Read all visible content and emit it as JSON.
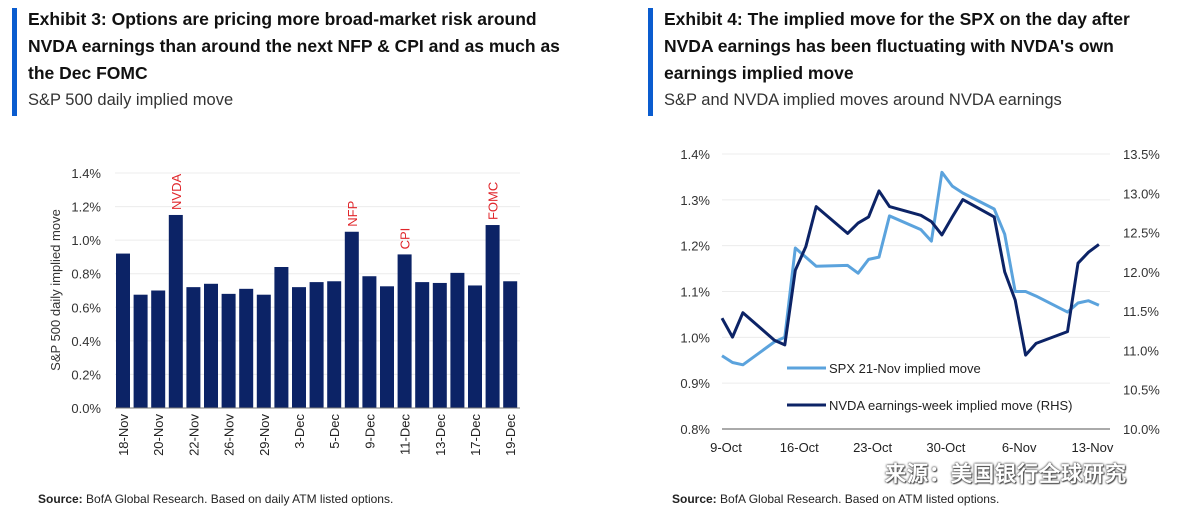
{
  "left": {
    "title": "Exhibit 3: Options are pricing more broad-market risk around NVDA earnings than around the next NFP & CPI and as much as the Dec FOMC",
    "subtitle": "S&P 500 daily implied move",
    "source_label": "Source:",
    "source_text": " BofA Global Research. Based on daily ATM listed options."
  },
  "right": {
    "title": "Exhibit 4: The implied move for the SPX on the day after NVDA earnings has been fluctuating with NVDA's own earnings implied move",
    "subtitle": "S&P and NVDA implied moves around NVDA earnings",
    "source_label": "Source:",
    "source_text": " BofA Global Research. Based on ATM listed options."
  },
  "watermark": "来源：美国银行全球研究",
  "colors": {
    "accent": "#0a5ccf",
    "bar": "#0c2366",
    "event": "#e0262b",
    "spx": "#5ba3dd",
    "nvda": "#0c2366"
  },
  "chart_data": [
    {
      "type": "bar",
      "ylabel": "S&P 500 daily implied move",
      "ylim": [
        0,
        1.4
      ],
      "yticks": [
        "0.0%",
        "0.2%",
        "0.4%",
        "0.6%",
        "0.8%",
        "1.0%",
        "1.2%",
        "1.4%"
      ],
      "grid": true,
      "categories": [
        "18-Nov",
        "19-Nov",
        "20-Nov",
        "21-Nov",
        "22-Nov",
        "25-Nov",
        "26-Nov",
        "27-Nov",
        "29-Nov",
        "2-Dec",
        "3-Dec",
        "4-Dec",
        "5-Dec",
        "6-Dec",
        "9-Dec",
        "10-Dec",
        "11-Dec",
        "12-Dec",
        "13-Dec",
        "16-Dec",
        "17-Dec",
        "18-Dec",
        "19-Dec"
      ],
      "tick_labels": [
        "18-Nov",
        "20-Nov",
        "22-Nov",
        "26-Nov",
        "29-Nov",
        "3-Dec",
        "5-Dec",
        "9-Dec",
        "11-Dec",
        "13-Dec",
        "17-Dec",
        "19-Dec"
      ],
      "values": [
        0.92,
        0.675,
        0.7,
        1.15,
        0.72,
        0.74,
        0.68,
        0.71,
        0.675,
        0.84,
        0.72,
        0.75,
        0.755,
        1.05,
        0.785,
        0.725,
        0.915,
        0.75,
        0.745,
        0.805,
        0.73,
        1.09,
        0.755
      ],
      "annotations": [
        {
          "category": "21-Nov",
          "text": "NVDA"
        },
        {
          "category": "6-Dec",
          "text": "NFP"
        },
        {
          "category": "11-Dec",
          "text": "CPI"
        },
        {
          "category": "18-Dec",
          "text": "FOMC"
        }
      ]
    },
    {
      "type": "line",
      "x_tick_labels": [
        "9-Oct",
        "16-Oct",
        "23-Oct",
        "30-Oct",
        "6-Nov",
        "13-Nov"
      ],
      "ylim": [
        0.8,
        1.4
      ],
      "yticks": [
        "0.8%",
        "0.9%",
        "1.0%",
        "1.1%",
        "1.2%",
        "1.3%",
        "1.4%"
      ],
      "y2lim": [
        10.0,
        13.5
      ],
      "y2ticks": [
        "10.0%",
        "10.5%",
        "11.0%",
        "11.5%",
        "12.0%",
        "12.5%",
        "13.0%",
        "13.5%"
      ],
      "grid": true,
      "legend": "bottom-center",
      "x": [
        "9-Oct",
        "10-Oct",
        "11-Oct",
        "14-Oct",
        "15-Oct",
        "16-Oct",
        "17-Oct",
        "18-Oct",
        "21-Oct",
        "22-Oct",
        "23-Oct",
        "24-Oct",
        "25-Oct",
        "28-Oct",
        "29-Oct",
        "30-Oct",
        "31-Oct",
        "1-Nov",
        "4-Nov",
        "5-Nov",
        "6-Nov",
        "7-Nov",
        "8-Nov",
        "11-Nov",
        "12-Nov",
        "13-Nov",
        "14-Nov"
      ],
      "series": [
        {
          "name": "SPX 21-Nov implied move",
          "axis": "left",
          "values": [
            0.96,
            0.945,
            0.94,
            0.99,
            1.0,
            1.195,
            1.175,
            1.155,
            1.157,
            1.14,
            1.17,
            1.175,
            1.265,
            1.235,
            1.21,
            1.36,
            1.33,
            1.315,
            1.28,
            1.225,
            1.1,
            1.1,
            1.09,
            1.055,
            1.075,
            1.08,
            1.07
          ]
        },
        {
          "name": "NVDA earnings-week implied move (RHS)",
          "axis": "right",
          "values": [
            11.41,
            11.17,
            11.48,
            11.13,
            11.07,
            12.02,
            12.32,
            12.83,
            12.49,
            12.62,
            12.7,
            13.03,
            12.83,
            12.72,
            12.64,
            12.47,
            12.7,
            12.92,
            12.7,
            12.0,
            11.64,
            10.94,
            11.09,
            11.24,
            12.11,
            12.25,
            12.35
          ]
        }
      ]
    }
  ]
}
